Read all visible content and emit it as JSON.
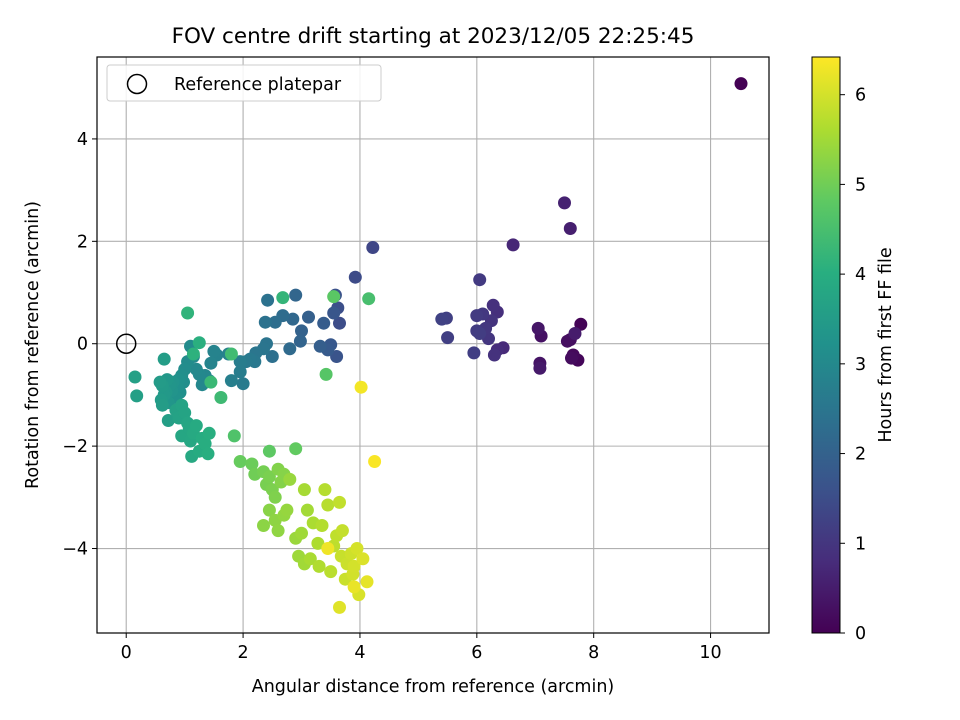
{
  "chart_data": {
    "type": "scatter",
    "title": "FOV centre drift starting at 2023/12/05 22:25:45",
    "xlabel": "Angular distance from reference (arcmin)",
    "ylabel": "Rotation from reference (arcmin)",
    "xlim": [
      -0.5,
      11.0
    ],
    "ylim": [
      -5.65,
      5.6
    ],
    "xticks": [
      0,
      2,
      4,
      6,
      8,
      10
    ],
    "yticks": [
      -4,
      -2,
      0,
      2,
      4
    ],
    "grid": true,
    "legend": {
      "placement": "top-left",
      "entries": [
        "Reference platepar"
      ]
    },
    "reference_point": {
      "x": 0,
      "y": 0
    },
    "colorbar": {
      "label": "Hours from first FF file",
      "range": [
        0,
        6.42
      ],
      "ticks": [
        0,
        1,
        2,
        3,
        4,
        5,
        6
      ],
      "colormap": "viridis"
    },
    "series": [
      {
        "name": "Reference platepar",
        "points": [
          [
            0,
            0,
            0
          ]
        ]
      },
      {
        "name": "",
        "points": [
          [
            10.52,
            5.08,
            0.0
          ],
          [
            7.78,
            0.38,
            0.05
          ],
          [
            7.73,
            -0.32,
            0.1
          ],
          [
            7.65,
            -0.22,
            0.15
          ],
          [
            7.62,
            -0.28,
            0.2
          ],
          [
            7.6,
            0.08,
            0.22
          ],
          [
            7.55,
            0.05,
            0.25
          ],
          [
            7.1,
            0.15,
            0.3
          ],
          [
            7.08,
            -0.38,
            0.35
          ],
          [
            7.05,
            0.3,
            0.4
          ],
          [
            7.08,
            -0.48,
            0.45
          ],
          [
            7.68,
            0.2,
            0.5
          ],
          [
            7.6,
            2.25,
            0.55
          ],
          [
            7.5,
            2.75,
            0.6
          ],
          [
            6.62,
            1.93,
            0.7
          ],
          [
            6.45,
            -0.08,
            0.75
          ],
          [
            6.35,
            -0.12,
            0.8
          ],
          [
            6.35,
            0.62,
            0.85
          ],
          [
            6.28,
            0.75,
            0.9
          ],
          [
            6.3,
            -0.22,
            0.92
          ],
          [
            6.25,
            0.45,
            0.95
          ],
          [
            6.2,
            0.1,
            1.0
          ],
          [
            6.15,
            0.3,
            1.02
          ],
          [
            6.1,
            0.58,
            1.05
          ],
          [
            6.05,
            1.25,
            1.08
          ],
          [
            6.0,
            0.55,
            1.1
          ],
          [
            6.0,
            0.25,
            1.12
          ],
          [
            6.05,
            0.2,
            1.15
          ],
          [
            5.95,
            -0.18,
            1.18
          ],
          [
            5.5,
            0.12,
            1.2
          ],
          [
            5.48,
            0.5,
            1.22
          ],
          [
            5.4,
            0.48,
            1.25
          ],
          [
            4.22,
            1.88,
            1.35
          ],
          [
            3.92,
            1.3,
            1.45
          ],
          [
            3.65,
            0.4,
            1.5
          ],
          [
            3.62,
            0.7,
            1.55
          ],
          [
            3.58,
            0.95,
            1.6
          ],
          [
            3.6,
            -0.25,
            1.65
          ],
          [
            3.55,
            0.6,
            1.7
          ],
          [
            3.5,
            -0.02,
            1.75
          ],
          [
            3.45,
            -0.12,
            1.8
          ],
          [
            3.38,
            0.4,
            1.85
          ],
          [
            3.32,
            -0.05,
            1.9
          ],
          [
            3.12,
            0.52,
            1.95
          ],
          [
            3.0,
            0.25,
            2.0
          ],
          [
            2.98,
            0.05,
            2.05
          ],
          [
            2.9,
            0.95,
            2.1
          ],
          [
            2.85,
            0.48,
            2.15
          ],
          [
            2.8,
            -0.1,
            2.2
          ],
          [
            2.68,
            0.55,
            2.25
          ],
          [
            2.55,
            0.42,
            2.3
          ],
          [
            2.5,
            -0.25,
            2.35
          ],
          [
            2.42,
            0.85,
            2.4
          ],
          [
            2.38,
            0.42,
            2.42
          ],
          [
            2.4,
            0.0,
            2.45
          ],
          [
            2.35,
            -0.1,
            2.48
          ],
          [
            2.22,
            -0.18,
            2.5
          ],
          [
            2.2,
            -0.35,
            2.55
          ],
          [
            2.12,
            -0.3,
            2.6
          ],
          [
            2.05,
            -0.35,
            2.62
          ],
          [
            2.0,
            -0.78,
            2.65
          ],
          [
            1.95,
            -0.35,
            2.68
          ],
          [
            1.95,
            -0.55,
            2.7
          ],
          [
            1.8,
            -0.72,
            2.75
          ],
          [
            1.75,
            -0.2,
            2.8
          ],
          [
            1.55,
            -0.22,
            2.82
          ],
          [
            1.5,
            -0.15,
            2.85
          ],
          [
            1.45,
            -0.38,
            2.88
          ],
          [
            1.42,
            -0.72,
            2.9
          ],
          [
            1.35,
            -0.62,
            2.92
          ],
          [
            1.3,
            -0.8,
            2.95
          ],
          [
            1.25,
            -0.6,
            2.98
          ],
          [
            1.2,
            -0.5,
            3.0
          ],
          [
            1.15,
            -0.25,
            3.02
          ],
          [
            1.1,
            -0.05,
            3.05
          ],
          [
            1.05,
            -0.35,
            3.08
          ],
          [
            1.0,
            -0.5,
            3.1
          ],
          [
            0.98,
            -0.75,
            3.12
          ],
          [
            0.95,
            -0.62,
            3.15
          ],
          [
            0.92,
            -0.95,
            3.18
          ],
          [
            0.9,
            -0.7,
            3.2
          ],
          [
            0.88,
            -0.85,
            3.22
          ],
          [
            0.85,
            -1.05,
            3.25
          ],
          [
            0.8,
            -0.75,
            3.28
          ],
          [
            0.78,
            -0.92,
            3.3
          ],
          [
            0.75,
            -0.8,
            3.32
          ],
          [
            0.72,
            -1.15,
            3.35
          ],
          [
            0.7,
            -0.7,
            3.38
          ],
          [
            0.68,
            -0.95,
            3.4
          ],
          [
            0.65,
            -1.0,
            3.42
          ],
          [
            0.62,
            -0.82,
            3.45
          ],
          [
            0.6,
            -1.1,
            3.48
          ],
          [
            0.58,
            -0.75,
            3.5
          ],
          [
            0.62,
            -1.2,
            3.52
          ],
          [
            0.65,
            -0.3,
            3.55
          ],
          [
            0.72,
            -1.5,
            3.58
          ],
          [
            0.18,
            -1.02,
            3.6
          ],
          [
            0.15,
            -0.65,
            3.62
          ],
          [
            0.85,
            -1.3,
            3.65
          ],
          [
            0.9,
            -1.45,
            3.68
          ],
          [
            0.95,
            -1.2,
            3.7
          ],
          [
            1.0,
            -1.35,
            3.72
          ],
          [
            1.05,
            -1.55,
            3.75
          ],
          [
            0.95,
            -1.8,
            3.78
          ],
          [
            1.08,
            -1.65,
            3.8
          ],
          [
            1.1,
            -1.9,
            3.82
          ],
          [
            1.12,
            -2.2,
            3.85
          ],
          [
            1.15,
            -1.75,
            3.88
          ],
          [
            1.2,
            -1.6,
            3.9
          ],
          [
            1.25,
            -2.1,
            3.92
          ],
          [
            1.3,
            -1.85,
            3.95
          ],
          [
            1.35,
            -1.95,
            3.98
          ],
          [
            1.4,
            -2.15,
            4.0
          ],
          [
            1.42,
            -1.75,
            4.02
          ],
          [
            1.25,
            0.02,
            4.05
          ],
          [
            1.15,
            -0.2,
            4.1
          ],
          [
            1.05,
            0.6,
            4.15
          ],
          [
            2.68,
            0.9,
            4.2
          ],
          [
            1.45,
            -0.75,
            4.3
          ],
          [
            1.62,
            -1.05,
            4.35
          ],
          [
            1.8,
            -0.2,
            4.4
          ],
          [
            4.15,
            0.88,
            4.5
          ],
          [
            1.85,
            -1.8,
            4.6
          ],
          [
            3.42,
            -0.6,
            4.7
          ],
          [
            3.55,
            0.92,
            4.75
          ],
          [
            2.45,
            -2.1,
            4.8
          ],
          [
            2.9,
            -2.05,
            4.85
          ],
          [
            1.95,
            -2.3,
            4.9
          ],
          [
            2.15,
            -2.35,
            4.95
          ],
          [
            2.2,
            -2.55,
            5.0
          ],
          [
            2.35,
            -2.5,
            5.05
          ],
          [
            2.4,
            -2.75,
            5.08
          ],
          [
            2.45,
            -2.6,
            5.1
          ],
          [
            2.5,
            -2.85,
            5.12
          ],
          [
            2.55,
            -3.0,
            5.15
          ],
          [
            2.6,
            -2.45,
            5.18
          ],
          [
            2.65,
            -2.7,
            5.2
          ],
          [
            2.7,
            -2.55,
            5.22
          ],
          [
            2.45,
            -3.25,
            5.25
          ],
          [
            2.35,
            -3.55,
            5.28
          ],
          [
            2.55,
            -3.45,
            5.3
          ],
          [
            2.6,
            -3.65,
            5.32
          ],
          [
            2.7,
            -3.35,
            5.35
          ],
          [
            2.75,
            -3.25,
            5.38
          ],
          [
            2.8,
            -2.65,
            5.4
          ],
          [
            2.9,
            -3.8,
            5.42
          ],
          [
            2.95,
            -4.15,
            5.45
          ],
          [
            3.0,
            -3.7,
            5.48
          ],
          [
            3.05,
            -4.3,
            5.5
          ],
          [
            3.1,
            -3.25,
            5.52
          ],
          [
            3.05,
            -2.85,
            5.55
          ],
          [
            3.15,
            -4.2,
            5.58
          ],
          [
            3.2,
            -3.5,
            5.6
          ],
          [
            3.28,
            -3.9,
            5.62
          ],
          [
            3.3,
            -4.35,
            5.65
          ],
          [
            3.35,
            -3.55,
            5.68
          ],
          [
            3.4,
            -2.85,
            5.7
          ],
          [
            3.45,
            -3.15,
            5.72
          ],
          [
            3.5,
            -4.45,
            5.75
          ],
          [
            3.55,
            -3.95,
            5.78
          ],
          [
            3.6,
            -3.75,
            5.8
          ],
          [
            3.65,
            -3.1,
            5.82
          ],
          [
            3.7,
            -3.65,
            5.85
          ],
          [
            3.68,
            -4.15,
            5.88
          ],
          [
            3.75,
            -4.6,
            5.9
          ],
          [
            3.78,
            -4.3,
            5.92
          ],
          [
            3.85,
            -4.1,
            5.95
          ],
          [
            3.88,
            -4.5,
            5.98
          ],
          [
            3.9,
            -4.35,
            6.0
          ],
          [
            3.95,
            -4.0,
            6.02
          ],
          [
            3.98,
            -4.9,
            6.05
          ],
          [
            4.05,
            -4.2,
            6.08
          ],
          [
            3.65,
            -5.15,
            6.12
          ],
          [
            4.12,
            -4.65,
            6.18
          ],
          [
            3.9,
            -4.75,
            6.22
          ],
          [
            3.45,
            -4.0,
            6.28
          ],
          [
            4.02,
            -0.85,
            6.32
          ],
          [
            4.25,
            -2.3,
            6.38
          ]
        ]
      }
    ]
  }
}
